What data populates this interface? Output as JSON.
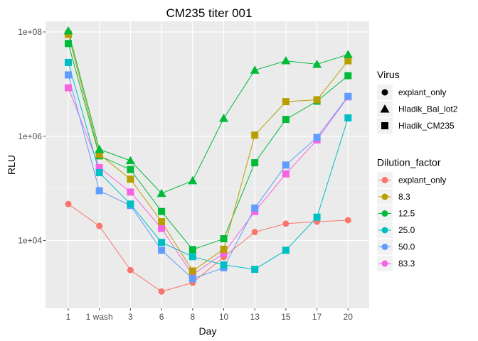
{
  "chart_data": {
    "type": "line",
    "title": "CM235 titer 001",
    "xlabel": "Day",
    "ylabel": "RLU",
    "y_scale": "log10",
    "ylim": [
      500,
      160000000
    ],
    "categories": [
      "1",
      "1 wash",
      "3",
      "6",
      "8",
      "10",
      "13",
      "15",
      "17",
      "20"
    ],
    "y_ticks": [
      {
        "value": 10000,
        "label": "1e+04"
      },
      {
        "value": 1000000,
        "label": "1e+06"
      },
      {
        "value": 100000000,
        "label": "1e+08"
      }
    ],
    "grid": true,
    "legend_placement": "right",
    "legends": [
      {
        "title": "Virus",
        "items": [
          {
            "label": "explant_only",
            "shape": "circle"
          },
          {
            "label": "Hladik_Bal_lot2",
            "shape": "triangle"
          },
          {
            "label": "Hladik_CM235",
            "shape": "square"
          }
        ]
      },
      {
        "title": "Dilution_factor",
        "items": [
          {
            "label": "explant_only",
            "color": "#F8766D"
          },
          {
            "label": "8.3",
            "color": "#B79F00"
          },
          {
            "label": "12.5",
            "color": "#00BA38"
          },
          {
            "label": "25.0",
            "color": "#00BFC4"
          },
          {
            "label": "50.0",
            "color": "#619CFF"
          },
          {
            "label": "83.3",
            "color": "#F564E3"
          }
        ]
      }
    ],
    "series": [
      {
        "virus": "explant_only",
        "dilution": "explant_only",
        "shape": "circle",
        "color": "#F8766D",
        "values": [
          50000,
          19000,
          2700,
          1050,
          1550,
          4800,
          14500,
          21000,
          23000,
          24500
        ]
      },
      {
        "virus": "Hladik_CM235",
        "dilution": "83.3",
        "shape": "square",
        "color": "#F564E3",
        "values": [
          8500000,
          250000,
          85000,
          17000,
          2200,
          5700,
          36000,
          190000,
          850000,
          5700000
        ]
      },
      {
        "virus": "Hladik_CM235",
        "dilution": "50.0",
        "shape": "square",
        "color": "#619CFF",
        "values": [
          15000000,
          90000,
          47000,
          6500,
          1850,
          3000,
          42000,
          280000,
          950000,
          5800000
        ]
      },
      {
        "virus": "Hladik_CM235",
        "dilution": "25.0",
        "shape": "square",
        "color": "#00BFC4",
        "values": [
          26000000,
          200000,
          50000,
          9200,
          4900,
          3400,
          2800,
          6500,
          28000,
          2250000
        ]
      },
      {
        "virus": "Hladik_CM235",
        "dilution": "12.5",
        "shape": "square",
        "color": "#00BA38",
        "values": [
          60000000,
          420000,
          230000,
          36000,
          6700,
          10800,
          310000,
          2100000,
          4700000,
          14500000
        ]
      },
      {
        "virus": "Hladik_CM235",
        "dilution": "8.3",
        "shape": "square",
        "color": "#B79F00",
        "values": [
          90000000,
          450000,
          150000,
          23000,
          2600,
          6800,
          1050000,
          4600000,
          5000000,
          28000000
        ]
      },
      {
        "virus": "Hladik_Bal_lot2",
        "dilution": "12.5",
        "shape": "triangle",
        "color": "#00BA38",
        "values": [
          105000000,
          560000,
          340000,
          80000,
          140000,
          2200000,
          18500000,
          28000000,
          24000000,
          37000000
        ]
      }
    ]
  }
}
